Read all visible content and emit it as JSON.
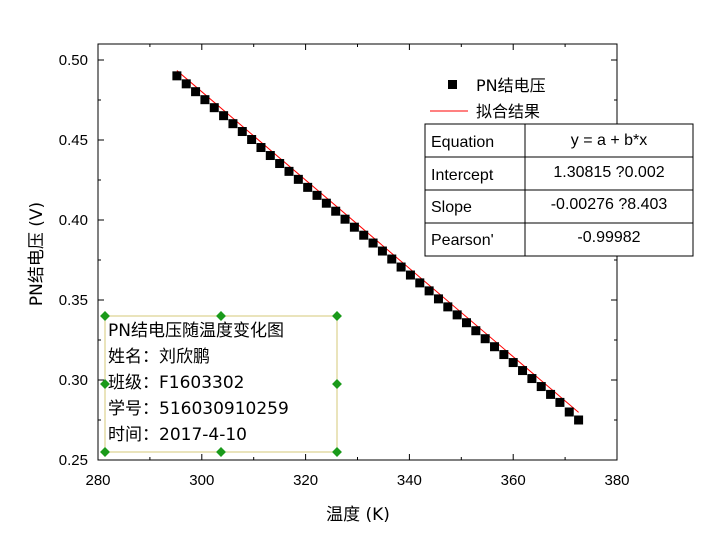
{
  "chart_data": {
    "type": "scatter",
    "xlabel": "温度 (K)",
    "ylabel": "PN结电压 (V)",
    "xlim": [
      280,
      380
    ],
    "ylim": [
      0.25,
      0.51
    ],
    "xticks": [
      "280",
      "300",
      "320",
      "340",
      "360",
      "380"
    ],
    "yticks": [
      "0.25",
      "0.30",
      "0.35",
      "0.40",
      "0.45",
      "0.50"
    ],
    "grid": false,
    "legend_position": "top-right",
    "series": [
      {
        "name": "PN结电压",
        "marker": "square",
        "color": "#000000",
        "x": [
          295.2,
          297.0,
          298.8,
          300.6,
          302.4,
          304.2,
          306.0,
          307.8,
          309.6,
          311.4,
          313.2,
          315.0,
          316.8,
          318.6,
          320.4,
          322.2,
          324.0,
          325.8,
          327.6,
          329.4,
          331.2,
          333.0,
          334.8,
          336.6,
          338.4,
          340.2,
          342.0,
          343.8,
          345.6,
          347.4,
          349.2,
          351.0,
          352.8,
          354.6,
          356.4,
          358.2,
          360.0,
          361.8,
          363.6,
          365.4,
          367.2,
          369.0,
          370.8,
          372.6
        ],
        "y": [
          0.4901,
          0.4851,
          0.4802,
          0.4752,
          0.4702,
          0.4652,
          0.4602,
          0.4553,
          0.4503,
          0.4453,
          0.4403,
          0.4353,
          0.4304,
          0.4254,
          0.4204,
          0.4154,
          0.4105,
          0.4055,
          0.4005,
          0.3955,
          0.3905,
          0.3856,
          0.3806,
          0.3756,
          0.3706,
          0.3656,
          0.3607,
          0.3557,
          0.3507,
          0.3457,
          0.3407,
          0.3358,
          0.3308,
          0.3258,
          0.3208,
          0.3159,
          0.3109,
          0.3059,
          0.3009,
          0.2959,
          0.291,
          0.286,
          0.28,
          0.275
        ]
      },
      {
        "name": "拟合结果",
        "type": "line",
        "color": "#ff0000",
        "intercept": 1.30815,
        "slope": -0.00276,
        "x_range": [
          295.2,
          372.6
        ]
      }
    ],
    "fit_table": {
      "rows": [
        [
          "Equation",
          "y = a + b*x"
        ],
        [
          "Intercept",
          "1.30815 ?0.002"
        ],
        [
          "Slope",
          "-0.00276 ?8.403"
        ],
        [
          "Pearson'",
          "-0.99982"
        ]
      ]
    },
    "annotation": {
      "lines": [
        "PN结电压随温度变化图",
        "姓名：刘欣鹏",
        "班级：F1603302",
        "学号：516030910259",
        "时间：2017-4-10"
      ]
    }
  }
}
